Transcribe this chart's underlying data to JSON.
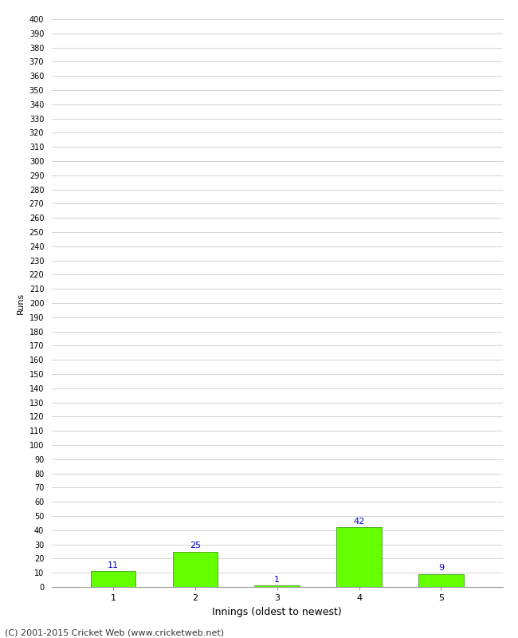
{
  "xlabel": "Innings (oldest to newest)",
  "ylabel": "Runs",
  "categories": [
    "1",
    "2",
    "3",
    "4",
    "5"
  ],
  "values": [
    11,
    25,
    1,
    42,
    9
  ],
  "bar_color": "#66ff00",
  "bar_edge_color": "#228800",
  "label_color": "#0000cc",
  "ylim": [
    0,
    400
  ],
  "ytick_step": 10,
  "background_color": "#ffffff",
  "grid_color": "#cccccc",
  "footer": "(C) 2001-2015 Cricket Web (www.cricketweb.net)"
}
